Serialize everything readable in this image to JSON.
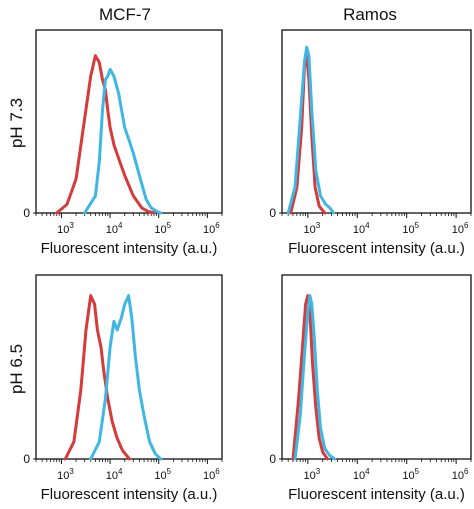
{
  "column_titles": [
    "MCF-7",
    "Ramos"
  ],
  "row_labels": [
    "pH 7.3",
    "pH 6.5"
  ],
  "colors": {
    "series_1": "#d63a3a",
    "series_2": "#3fb7e4"
  },
  "chart_data": [
    {
      "type": "line",
      "title": "MCF-7",
      "row_label": "pH 7.3",
      "xlabel": "Fluorescent intensity (a.u.)",
      "xscale": "log",
      "xlim": [
        300,
        2000000
      ],
      "ylim": [
        0,
        1
      ],
      "y_tick_labels": [
        "0"
      ],
      "x_tick_labels": [
        "10^3",
        "10^4",
        "10^5",
        "10^6"
      ],
      "x_tick_values": [
        1000,
        10000,
        100000,
        1000000
      ],
      "series": [
        {
          "color": "#d63a3a",
          "x": [
            800,
            1300,
            2000,
            3000,
            4000,
            5000,
            6000,
            7000,
            8000,
            9000,
            10000,
            12000,
            15000,
            20000,
            30000,
            45000,
            60000,
            80000
          ],
          "values": [
            0.0,
            0.05,
            0.2,
            0.55,
            0.8,
            0.92,
            0.88,
            0.78,
            0.72,
            0.6,
            0.5,
            0.4,
            0.32,
            0.22,
            0.1,
            0.03,
            0.01,
            0.0
          ]
        },
        {
          "color": "#3fb7e4",
          "x": [
            3000,
            5000,
            6000,
            7000,
            8000,
            9000,
            10000,
            12000,
            15000,
            20000,
            25000,
            30000,
            40000,
            55000,
            70000,
            90000,
            110000
          ],
          "values": [
            0.0,
            0.1,
            0.3,
            0.6,
            0.78,
            0.8,
            0.84,
            0.8,
            0.7,
            0.5,
            0.42,
            0.35,
            0.22,
            0.08,
            0.03,
            0.01,
            0.0
          ]
        }
      ]
    },
    {
      "type": "line",
      "title": "Ramos",
      "row_label": "pH 7.3",
      "xlabel": "Fluorescent intensity (a.u.)",
      "xscale": "log",
      "xlim": [
        300,
        2000000
      ],
      "ylim": [
        0,
        1
      ],
      "y_tick_labels": [
        "0"
      ],
      "x_tick_labels": [
        "10^3",
        "10^4",
        "10^5",
        "10^6"
      ],
      "x_tick_values": [
        1000,
        10000,
        100000,
        1000000
      ],
      "series": [
        {
          "color": "#d63a3a",
          "x": [
            450,
            600,
            750,
            850,
            950,
            1050,
            1200,
            1400,
            1700,
            2200
          ],
          "values": [
            0.0,
            0.15,
            0.5,
            0.85,
            0.92,
            0.78,
            0.45,
            0.15,
            0.04,
            0.0
          ]
        },
        {
          "color": "#3fb7e4",
          "x": [
            400,
            550,
            700,
            850,
            950,
            1050,
            1200,
            1450,
            1800,
            2300,
            2800,
            3300
          ],
          "values": [
            0.0,
            0.15,
            0.55,
            0.88,
            0.97,
            0.92,
            0.6,
            0.25,
            0.1,
            0.05,
            0.03,
            0.0
          ]
        }
      ]
    },
    {
      "type": "line",
      "title": "MCF-7",
      "row_label": "pH 6.5",
      "xlabel": "Fluorescent intensity (a.u.)",
      "xscale": "log",
      "xlim": [
        300,
        2000000
      ],
      "ylim": [
        0,
        1
      ],
      "y_tick_labels": [
        "0"
      ],
      "x_tick_labels": [
        "10^3",
        "10^4",
        "10^5",
        "10^6"
      ],
      "x_tick_values": [
        1000,
        10000,
        100000,
        1000000
      ],
      "series": [
        {
          "color": "#d63a3a",
          "x": [
            1200,
            1800,
            2500,
            3200,
            4000,
            4800,
            5500,
            6500,
            7500,
            9000,
            11000,
            14000,
            18000,
            25000
          ],
          "values": [
            0.0,
            0.1,
            0.4,
            0.75,
            0.95,
            0.9,
            0.75,
            0.65,
            0.5,
            0.35,
            0.22,
            0.12,
            0.05,
            0.0
          ]
        },
        {
          "color": "#3fb7e4",
          "x": [
            4000,
            6000,
            8000,
            10000,
            12000,
            14000,
            17000,
            20000,
            24000,
            28000,
            33000,
            40000,
            50000,
            65000,
            85000,
            110000
          ],
          "values": [
            0.0,
            0.1,
            0.35,
            0.65,
            0.8,
            0.75,
            0.82,
            0.9,
            0.95,
            0.82,
            0.6,
            0.4,
            0.25,
            0.1,
            0.03,
            0.0
          ]
        }
      ]
    },
    {
      "type": "line",
      "title": "Ramos",
      "row_label": "pH 6.5",
      "xlabel": "Fluorescent intensity (a.u.)",
      "xscale": "log",
      "xlim": [
        300,
        2000000
      ],
      "ylim": [
        0,
        1
      ],
      "y_tick_labels": [
        "0"
      ],
      "x_tick_labels": [
        "10^3",
        "10^4",
        "10^5",
        "10^6"
      ],
      "x_tick_values": [
        1000,
        10000,
        100000,
        1000000
      ],
      "series": [
        {
          "color": "#d63a3a",
          "x": [
            500,
            650,
            800,
            900,
            1000,
            1100,
            1250,
            1450,
            1700,
            2000,
            2500
          ],
          "values": [
            0.0,
            0.35,
            0.7,
            0.9,
            0.95,
            0.85,
            0.55,
            0.3,
            0.12,
            0.04,
            0.0
          ]
        },
        {
          "color": "#3fb7e4",
          "x": [
            550,
            700,
            850,
            1000,
            1100,
            1200,
            1350,
            1550,
            1800,
            2200,
            2800,
            3500
          ],
          "values": [
            0.0,
            0.25,
            0.6,
            0.85,
            0.95,
            0.9,
            0.7,
            0.4,
            0.18,
            0.06,
            0.02,
            0.0
          ]
        }
      ]
    }
  ]
}
